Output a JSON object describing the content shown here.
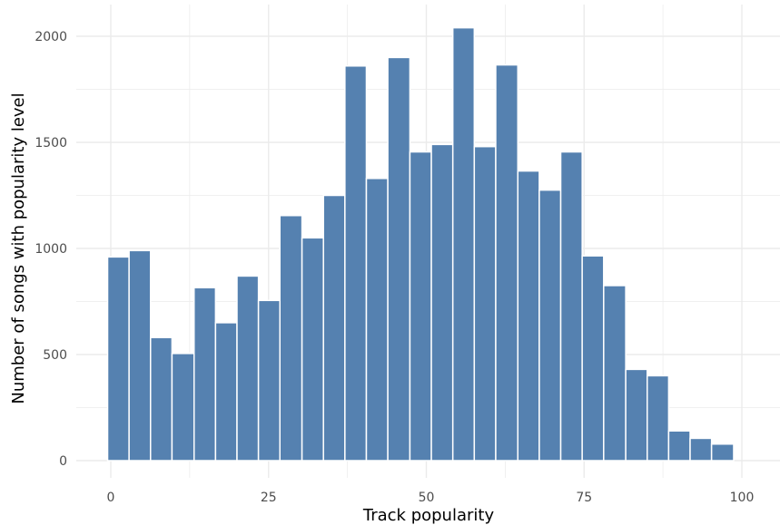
{
  "colors": {
    "background": "#ffffff",
    "grid": "#ebebeb",
    "bar_fill": "#5581b0",
    "bar_stroke": "#ffffff",
    "tick_text": "#4d4d4d",
    "axis_text": "#000000"
  },
  "chart_data": {
    "type": "bar",
    "title": "",
    "xlabel": "Track popularity",
    "ylabel": "Number of songs with popularity level",
    "xlim": [
      -2,
      102
    ],
    "ylim": [
      0,
      2100
    ],
    "x_ticks": [
      0,
      25,
      50,
      75,
      100
    ],
    "y_ticks": [
      0,
      500,
      1000,
      1500,
      2000
    ],
    "grid": true,
    "legend": "none",
    "bins": [
      {
        "x0": -0.5,
        "x1": 2.9,
        "value": 960
      },
      {
        "x0": 2.9,
        "x1": 6.3,
        "value": 990
      },
      {
        "x0": 6.3,
        "x1": 9.7,
        "value": 580
      },
      {
        "x0": 9.7,
        "x1": 13.2,
        "value": 505
      },
      {
        "x0": 13.2,
        "x1": 16.6,
        "value": 815
      },
      {
        "x0": 16.6,
        "x1": 20.0,
        "value": 650
      },
      {
        "x0": 20.0,
        "x1": 23.4,
        "value": 870
      },
      {
        "x0": 23.4,
        "x1": 26.8,
        "value": 755
      },
      {
        "x0": 26.8,
        "x1": 30.3,
        "value": 1155
      },
      {
        "x0": 30.3,
        "x1": 33.7,
        "value": 1050
      },
      {
        "x0": 33.7,
        "x1": 37.1,
        "value": 1250
      },
      {
        "x0": 37.1,
        "x1": 40.5,
        "value": 1860
      },
      {
        "x0": 40.5,
        "x1": 43.9,
        "value": 1330
      },
      {
        "x0": 43.9,
        "x1": 47.4,
        "value": 1900
      },
      {
        "x0": 47.4,
        "x1": 50.8,
        "value": 1455
      },
      {
        "x0": 50.8,
        "x1": 54.2,
        "value": 1490
      },
      {
        "x0": 54.2,
        "x1": 57.6,
        "value": 2040
      },
      {
        "x0": 57.6,
        "x1": 61.0,
        "value": 1480
      },
      {
        "x0": 61.0,
        "x1": 64.5,
        "value": 1865
      },
      {
        "x0": 64.5,
        "x1": 67.9,
        "value": 1365
      },
      {
        "x0": 67.9,
        "x1": 71.3,
        "value": 1275
      },
      {
        "x0": 71.3,
        "x1": 74.7,
        "value": 1455
      },
      {
        "x0": 74.7,
        "x1": 78.1,
        "value": 965
      },
      {
        "x0": 78.1,
        "x1": 81.6,
        "value": 825
      },
      {
        "x0": 81.6,
        "x1": 85.0,
        "value": 430
      },
      {
        "x0": 85.0,
        "x1": 88.4,
        "value": 400
      },
      {
        "x0": 88.4,
        "x1": 91.8,
        "value": 140
      },
      {
        "x0": 91.8,
        "x1": 95.2,
        "value": 105
      },
      {
        "x0": 95.2,
        "x1": 98.7,
        "value": 78
      }
    ]
  }
}
